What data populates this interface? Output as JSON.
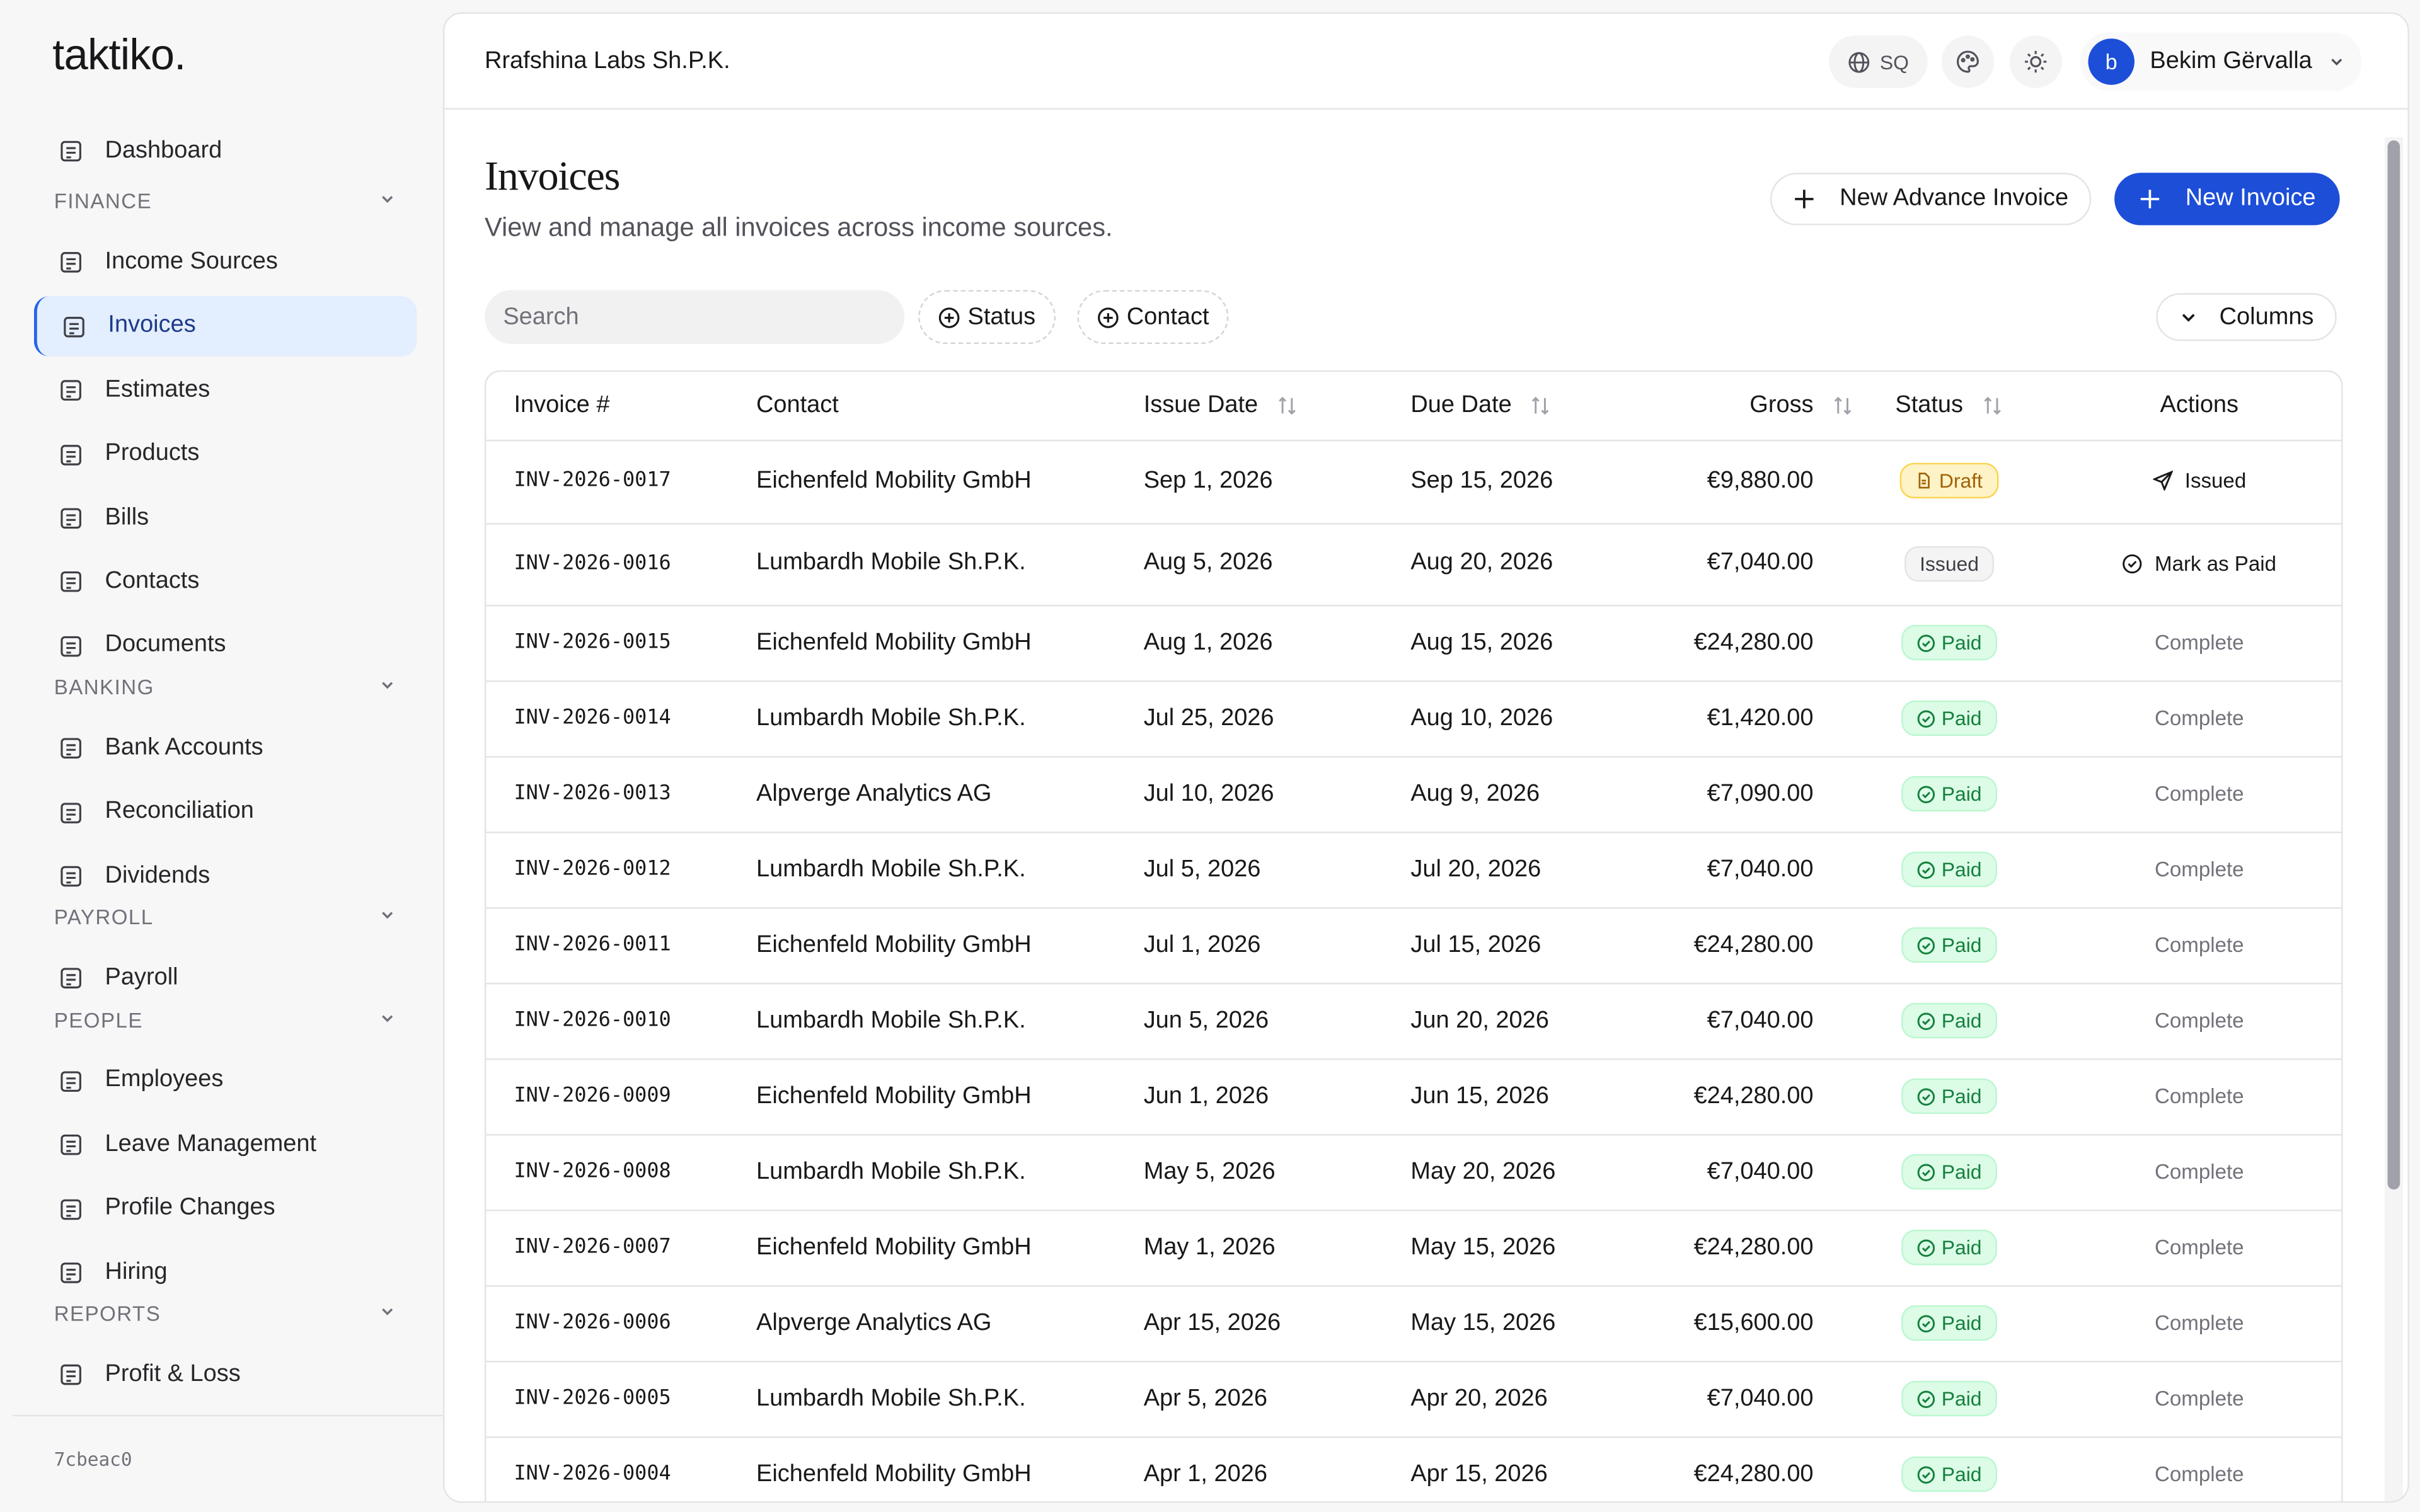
{
  "brand": "taktiko.",
  "sidebar": {
    "top": [
      "Dashboard"
    ],
    "sections": [
      {
        "title": "FINANCE",
        "items": [
          "Income Sources",
          "Invoices",
          "Estimates",
          "Products",
          "Bills",
          "Contacts",
          "Documents"
        ]
      },
      {
        "title": "BANKING",
        "items": [
          "Bank Accounts",
          "Reconciliation",
          "Dividends"
        ]
      },
      {
        "title": "PAYROLL",
        "items": [
          "Payroll"
        ]
      },
      {
        "title": "PEOPLE",
        "items": [
          "Employees",
          "Leave Management",
          "Profile Changes",
          "Hiring"
        ]
      },
      {
        "title": "REPORTS",
        "items": [
          "Profit & Loss"
        ]
      }
    ],
    "active": "Invoices",
    "version": "7cbeac0"
  },
  "header": {
    "org": "Rrafshina Labs Sh.P.K.",
    "lang": "SQ",
    "user_initial": "b",
    "user": "Bekim Gërvalla"
  },
  "page": {
    "title": "Invoices",
    "subtitle": "View and manage all invoices across income sources.",
    "advance_button": "New Advance Invoice",
    "new_button": "New Invoice",
    "search_placeholder": "Search",
    "filters": [
      "Status",
      "Contact"
    ],
    "columns_button": "Columns"
  },
  "table": {
    "columns": [
      "Invoice #",
      "Contact",
      "Issue Date",
      "Due Date",
      "Gross",
      "Status",
      "Actions"
    ],
    "rows": [
      [
        "INV-2026-0017",
        "Eichenfeld Mobility GmbH",
        "Sep 1, 2026",
        "Sep 15, 2026",
        "€9,880.00",
        "Draft",
        "Issued"
      ],
      [
        "INV-2026-0016",
        "Lumbardh Mobile Sh.P.K.",
        "Aug 5, 2026",
        "Aug 20, 2026",
        "€7,040.00",
        "Issued",
        "Mark as Paid"
      ],
      [
        "INV-2026-0015",
        "Eichenfeld Mobility GmbH",
        "Aug 1, 2026",
        "Aug 15, 2026",
        "€24,280.00",
        "Paid",
        "Complete"
      ],
      [
        "INV-2026-0014",
        "Lumbardh Mobile Sh.P.K.",
        "Jul 25, 2026",
        "Aug 10, 2026",
        "€1,420.00",
        "Paid",
        "Complete"
      ],
      [
        "INV-2026-0013",
        "Alpverge Analytics AG",
        "Jul 10, 2026",
        "Aug 9, 2026",
        "€7,090.00",
        "Paid",
        "Complete"
      ],
      [
        "INV-2026-0012",
        "Lumbardh Mobile Sh.P.K.",
        "Jul 5, 2026",
        "Jul 20, 2026",
        "€7,040.00",
        "Paid",
        "Complete"
      ],
      [
        "INV-2026-0011",
        "Eichenfeld Mobility GmbH",
        "Jul 1, 2026",
        "Jul 15, 2026",
        "€24,280.00",
        "Paid",
        "Complete"
      ],
      [
        "INV-2026-0010",
        "Lumbardh Mobile Sh.P.K.",
        "Jun 5, 2026",
        "Jun 20, 2026",
        "€7,040.00",
        "Paid",
        "Complete"
      ],
      [
        "INV-2026-0009",
        "Eichenfeld Mobility GmbH",
        "Jun 1, 2026",
        "Jun 15, 2026",
        "€24,280.00",
        "Paid",
        "Complete"
      ],
      [
        "INV-2026-0008",
        "Lumbardh Mobile Sh.P.K.",
        "May 5, 2026",
        "May 20, 2026",
        "€7,040.00",
        "Paid",
        "Complete"
      ],
      [
        "INV-2026-0007",
        "Eichenfeld Mobility GmbH",
        "May 1, 2026",
        "May 15, 2026",
        "€24,280.00",
        "Paid",
        "Complete"
      ],
      [
        "INV-2026-0006",
        "Alpverge Analytics AG",
        "Apr 15, 2026",
        "May 15, 2026",
        "€15,600.00",
        "Paid",
        "Complete"
      ],
      [
        "INV-2026-0005",
        "Lumbardh Mobile Sh.P.K.",
        "Apr 5, 2026",
        "Apr 20, 2026",
        "€7,040.00",
        "Paid",
        "Complete"
      ],
      [
        "INV-2026-0004",
        "Eichenfeld Mobility GmbH",
        "Apr 1, 2026",
        "Apr 15, 2026",
        "€24,280.00",
        "Paid",
        "Complete"
      ]
    ]
  }
}
